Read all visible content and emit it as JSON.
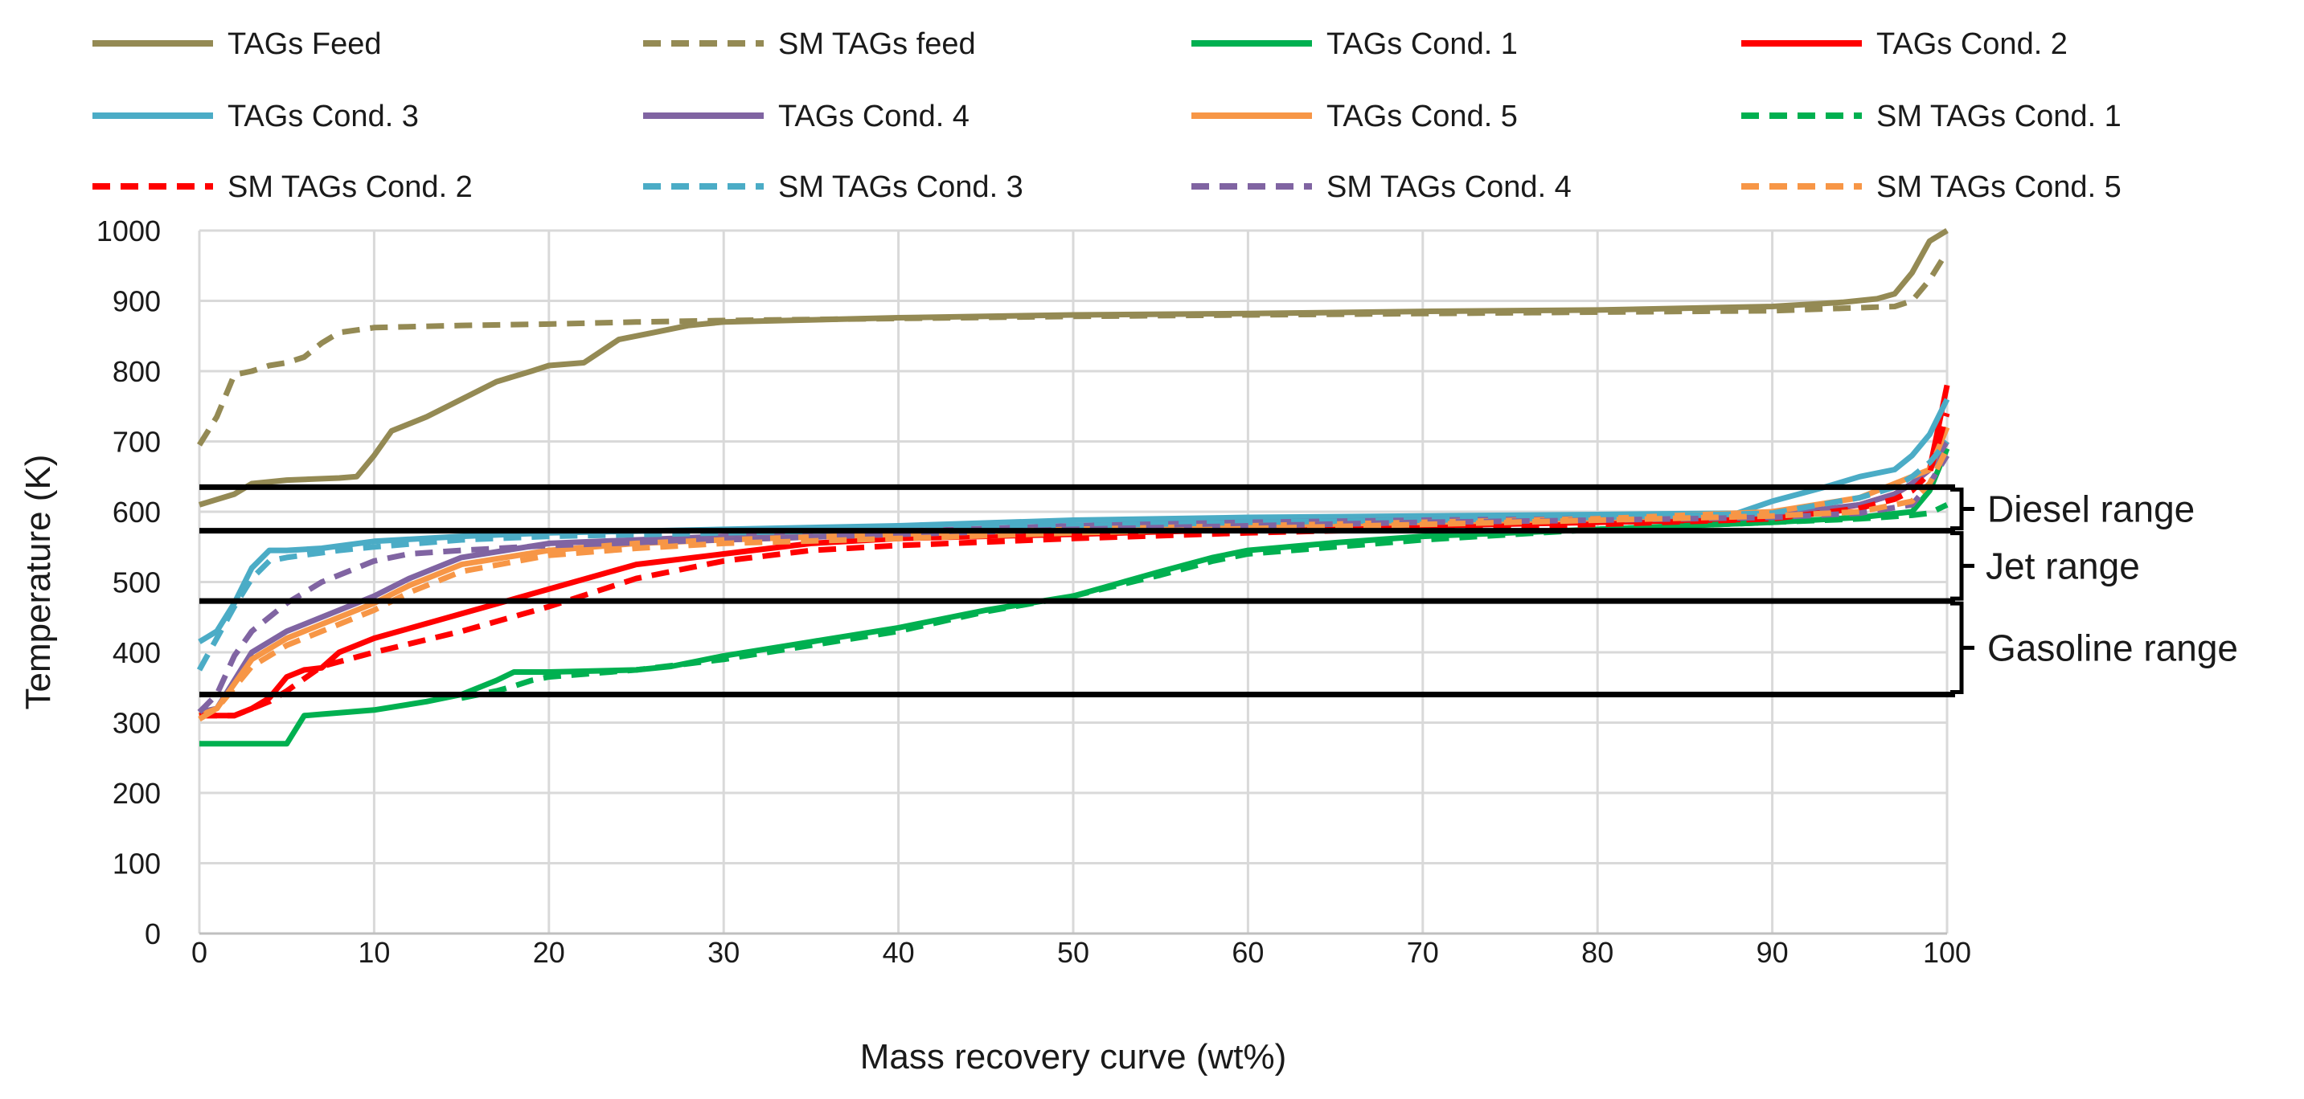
{
  "chart_data": {
    "type": "line",
    "title": "",
    "xlabel": "Mass recovery curve (wt%)",
    "ylabel": "Temperature (K)",
    "xlim": [
      0,
      100
    ],
    "ylim": [
      0,
      1000
    ],
    "x_ticks": [
      "0",
      "10",
      "20",
      "30",
      "40",
      "50",
      "60",
      "70",
      "80",
      "90",
      "100"
    ],
    "y_ticks": [
      "0",
      "100",
      "200",
      "300",
      "400",
      "500",
      "600",
      "700",
      "800",
      "900",
      "1000"
    ],
    "grid": true,
    "legend_position": "top",
    "series": [
      {
        "name": "TAGs Feed",
        "color": "#948a54",
        "style": "solid",
        "x": [
          0,
          2,
          3,
          5,
          8,
          9,
          10,
          11,
          12,
          13,
          15,
          17,
          19,
          20,
          22,
          24,
          26,
          28,
          30,
          40,
          50,
          60,
          70,
          80,
          90,
          94,
          96,
          97,
          98,
          99,
          100
        ],
        "y": [
          610,
          625,
          640,
          645,
          648,
          650,
          680,
          715,
          725,
          735,
          760,
          785,
          800,
          808,
          812,
          845,
          855,
          865,
          870,
          876,
          880,
          882,
          885,
          887,
          892,
          898,
          903,
          910,
          940,
          985,
          1000
        ]
      },
      {
        "name": "SM TAGs feed",
        "color": "#948a54",
        "style": "dash",
        "x": [
          0,
          1,
          2,
          3,
          4,
          5,
          6,
          7,
          8,
          10,
          15,
          20,
          25,
          30,
          40,
          50,
          60,
          70,
          80,
          90,
          97,
          98,
          99,
          100
        ],
        "y": [
          695,
          735,
          795,
          800,
          808,
          812,
          820,
          840,
          855,
          862,
          865,
          867,
          870,
          872,
          875,
          878,
          880,
          882,
          884,
          886,
          892,
          900,
          930,
          970
        ]
      },
      {
        "name": "TAGs Cond. 1",
        "color": "#00b050",
        "style": "solid",
        "x": [
          0,
          2,
          4,
          5,
          6,
          7,
          10,
          13,
          15,
          17,
          18,
          20,
          25,
          27,
          30,
          35,
          40,
          45,
          50,
          55,
          58,
          60,
          65,
          70,
          80,
          90,
          95,
          98,
          99,
          100
        ],
        "y": [
          270,
          270,
          270,
          270,
          310,
          312,
          318,
          330,
          340,
          360,
          372,
          372,
          375,
          380,
          395,
          415,
          435,
          460,
          480,
          515,
          535,
          545,
          556,
          565,
          575,
          585,
          592,
          600,
          630,
          690
        ]
      },
      {
        "name": "TAGs Cond. 2",
        "color": "#ff0000",
        "style": "solid",
        "x": [
          0,
          1,
          2,
          3,
          4,
          5,
          6,
          7,
          8,
          10,
          15,
          20,
          25,
          30,
          35,
          40,
          50,
          60,
          70,
          80,
          90,
          95,
          97,
          98,
          99,
          100
        ],
        "y": [
          310,
          310,
          310,
          320,
          335,
          365,
          375,
          378,
          400,
          420,
          455,
          490,
          525,
          540,
          555,
          562,
          568,
          575,
          580,
          585,
          590,
          610,
          625,
          640,
          660,
          780
        ]
      },
      {
        "name": "TAGs Cond. 3",
        "color": "#4bacc6",
        "style": "solid",
        "x": [
          0,
          1,
          2,
          3,
          4,
          5,
          7,
          10,
          15,
          20,
          30,
          40,
          50,
          60,
          70,
          80,
          88,
          90,
          93,
          95,
          97,
          98,
          99,
          100
        ],
        "y": [
          415,
          430,
          470,
          520,
          545,
          545,
          548,
          558,
          565,
          570,
          575,
          580,
          588,
          592,
          594,
          596,
          598,
          615,
          635,
          650,
          660,
          680,
          710,
          760
        ]
      },
      {
        "name": "TAGs Cond. 4",
        "color": "#8064a2",
        "style": "solid",
        "x": [
          0,
          1,
          2,
          3,
          5,
          8,
          10,
          12,
          14,
          15,
          20,
          30,
          40,
          50,
          60,
          70,
          80,
          90,
          95,
          97,
          98,
          99,
          100
        ],
        "y": [
          315,
          320,
          360,
          400,
          430,
          460,
          480,
          505,
          525,
          535,
          555,
          565,
          572,
          580,
          585,
          588,
          590,
          595,
          610,
          625,
          640,
          660,
          700
        ]
      },
      {
        "name": "TAGs Cond. 5",
        "color": "#f79646",
        "style": "solid",
        "x": [
          0,
          1,
          2,
          3,
          5,
          8,
          10,
          12,
          15,
          20,
          25,
          30,
          40,
          50,
          60,
          70,
          80,
          90,
          95,
          97,
          98,
          99,
          100
        ],
        "y": [
          310,
          320,
          355,
          390,
          420,
          450,
          470,
          495,
          525,
          545,
          555,
          560,
          568,
          575,
          580,
          585,
          590,
          600,
          620,
          640,
          650,
          660,
          720
        ]
      },
      {
        "name": "SM TAGs Cond. 1",
        "color": "#00b050",
        "style": "dash",
        "x": [
          15,
          17,
          18,
          19,
          20,
          25,
          30,
          35,
          40,
          45,
          50,
          55,
          58,
          60,
          65,
          70,
          80,
          90,
          95,
          98,
          99,
          100
        ],
        "y": [
          335,
          345,
          352,
          360,
          365,
          375,
          390,
          410,
          430,
          458,
          480,
          510,
          530,
          540,
          550,
          560,
          575,
          585,
          590,
          595,
          598,
          610
        ]
      },
      {
        "name": "SM TAGs Cond. 2",
        "color": "#ff0000",
        "style": "dash",
        "x": [
          0,
          2,
          3,
          4,
          5,
          7,
          10,
          15,
          20,
          25,
          30,
          35,
          40,
          50,
          60,
          70,
          80,
          90,
          95,
          97,
          98,
          99,
          100
        ],
        "y": [
          310,
          310,
          320,
          330,
          345,
          380,
          400,
          430,
          465,
          505,
          530,
          545,
          552,
          562,
          570,
          576,
          582,
          590,
          605,
          618,
          630,
          655,
          740
        ]
      },
      {
        "name": "SM TAGs Cond. 3",
        "color": "#4bacc6",
        "style": "dash",
        "x": [
          0,
          1,
          2,
          3,
          4,
          5,
          8,
          10,
          15,
          20,
          30,
          40,
          50,
          60,
          70,
          80,
          90,
          95,
          97,
          98,
          99,
          100
        ],
        "y": [
          375,
          420,
          465,
          505,
          530,
          535,
          545,
          550,
          560,
          565,
          570,
          575,
          580,
          585,
          588,
          592,
          598,
          620,
          635,
          650,
          670,
          700
        ]
      },
      {
        "name": "SM TAGs Cond. 4",
        "color": "#8064a2",
        "style": "dash",
        "x": [
          0,
          1,
          2,
          3,
          5,
          7,
          9,
          10,
          12,
          15,
          20,
          30,
          40,
          50,
          60,
          70,
          80,
          90,
          95,
          98,
          99,
          100
        ],
        "y": [
          315,
          340,
          395,
          430,
          470,
          500,
          520,
          530,
          540,
          545,
          552,
          560,
          568,
          575,
          580,
          585,
          588,
          592,
          598,
          610,
          640,
          680
        ]
      },
      {
        "name": "SM TAGs Cond. 5",
        "color": "#f79646",
        "style": "dash",
        "x": [
          0,
          1,
          2,
          3,
          5,
          8,
          10,
          12,
          15,
          20,
          25,
          30,
          40,
          50,
          60,
          70,
          80,
          90,
          95,
          98,
          99,
          100
        ],
        "y": [
          305,
          320,
          350,
          380,
          410,
          440,
          460,
          485,
          515,
          538,
          548,
          555,
          562,
          570,
          576,
          582,
          588,
          594,
          600,
          615,
          640,
          690
        ]
      }
    ],
    "reference_lines": [
      {
        "y": 635,
        "color": "#000000"
      },
      {
        "y": 573,
        "color": "#000000"
      },
      {
        "y": 473,
        "color": "#000000"
      },
      {
        "y": 340,
        "color": "#000000"
      }
    ],
    "ranges": [
      {
        "label": "Diesel range",
        "from": 573,
        "to": 635
      },
      {
        "label": "Jet range",
        "from": 473,
        "to": 573
      },
      {
        "label": "Gasoline range",
        "from": 340,
        "to": 473
      }
    ]
  }
}
